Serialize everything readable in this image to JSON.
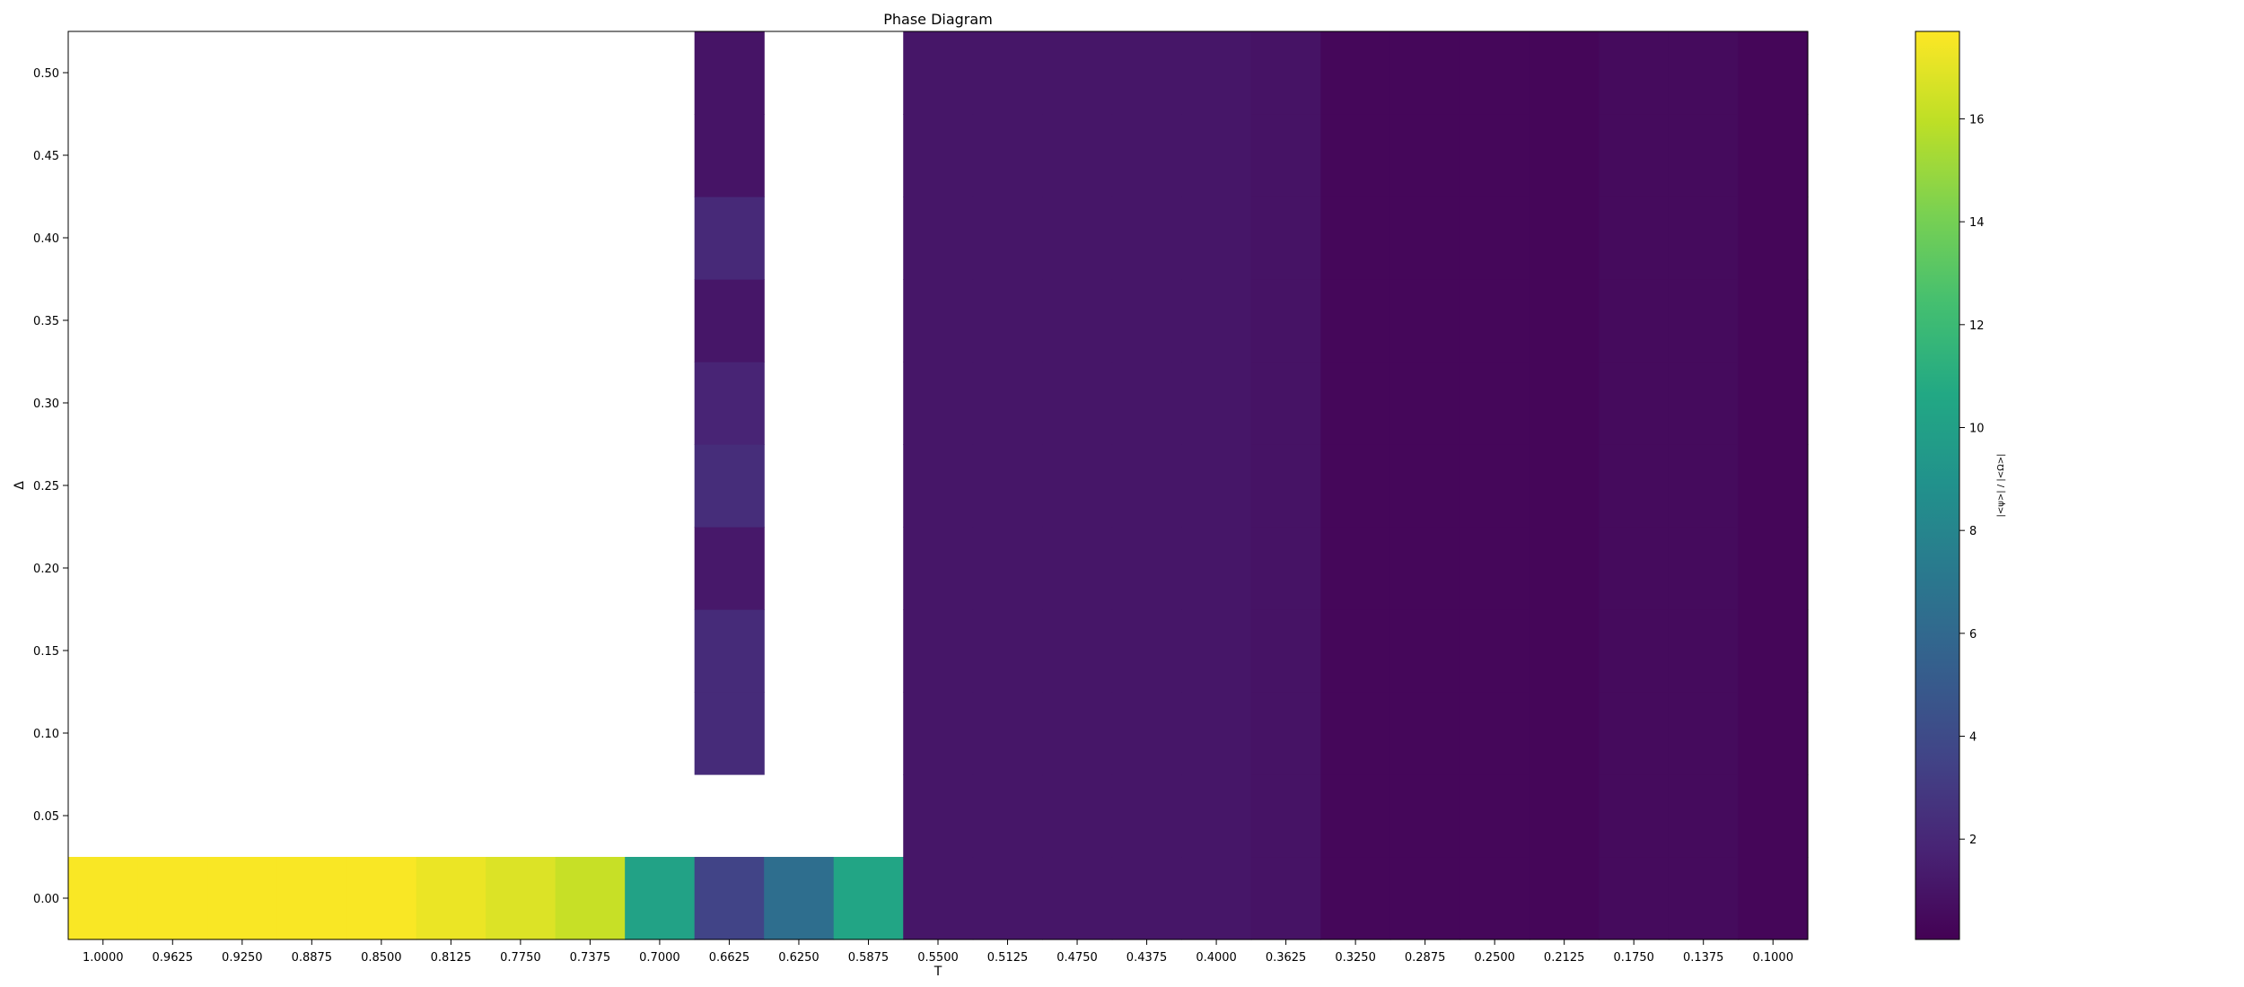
{
  "chart_data": {
    "type": "heatmap",
    "title": "Phase Diagram",
    "xlabel": "T",
    "ylabel": "Δ",
    "colorbar_label": "|<ψ>| / |<Ω>|",
    "colormap": "viridis",
    "vmin": 0.05,
    "vmax": 17.7,
    "x_tick_labels": [
      "1.0000",
      "0.9625",
      "0.9250",
      "0.8875",
      "0.8500",
      "0.8125",
      "0.7750",
      "0.7375",
      "0.7000",
      "0.6625",
      "0.6250",
      "0.5875",
      "0.5500",
      "0.5125",
      "0.4750",
      "0.4375",
      "0.4000",
      "0.3625",
      "0.3250",
      "0.2875",
      "0.2500",
      "0.2125",
      "0.1750",
      "0.1375",
      "0.1000"
    ],
    "y_values": [
      0.0,
      0.05,
      0.1,
      0.15,
      0.2,
      0.25,
      0.3,
      0.35,
      0.4,
      0.45,
      0.5
    ],
    "y_cell_bounds": [
      [
        -0.025,
        0.025
      ],
      [
        0.025,
        0.075
      ],
      [
        0.075,
        0.125
      ],
      [
        0.125,
        0.175
      ],
      [
        0.175,
        0.225
      ],
      [
        0.225,
        0.275
      ],
      [
        0.275,
        0.325
      ],
      [
        0.325,
        0.375
      ],
      [
        0.375,
        0.425
      ],
      [
        0.425,
        0.475
      ],
      [
        0.475,
        0.525
      ]
    ],
    "y_tick_labels": [
      "0.00",
      "0.05",
      "0.10",
      "0.15",
      "0.20",
      "0.25",
      "0.30",
      "0.35",
      "0.40",
      "0.45",
      "0.50"
    ],
    "ylim": [
      -0.025,
      0.525
    ],
    "colorbar_ticks": [
      2,
      4,
      6,
      8,
      10,
      12,
      14,
      16
    ],
    "grid": false,
    "values": [
      [
        17.6,
        17.6,
        17.6,
        17.6,
        17.6,
        17.2,
        16.8,
        16.2,
        10.2,
        3.6,
        6.4,
        10.4,
        1.1,
        1.1,
        1.1,
        1.1,
        1.1,
        0.95,
        0.35,
        0.35,
        0.35,
        0.3,
        0.55,
        0.55,
        0.3
      ],
      [
        null,
        null,
        null,
        null,
        null,
        null,
        null,
        null,
        null,
        null,
        null,
        null,
        1.1,
        1.1,
        1.1,
        1.1,
        1.1,
        0.95,
        0.35,
        0.35,
        0.35,
        0.3,
        0.55,
        0.55,
        0.3
      ],
      [
        null,
        null,
        null,
        null,
        null,
        null,
        null,
        null,
        null,
        2.2,
        null,
        null,
        1.1,
        1.1,
        1.1,
        1.1,
        1.1,
        0.95,
        0.35,
        0.35,
        0.35,
        0.3,
        0.55,
        0.55,
        0.3
      ],
      [
        null,
        null,
        null,
        null,
        null,
        null,
        null,
        null,
        null,
        2.2,
        null,
        null,
        1.1,
        1.1,
        1.1,
        1.1,
        1.1,
        0.95,
        0.35,
        0.35,
        0.35,
        0.3,
        0.55,
        0.55,
        0.3
      ],
      [
        null,
        null,
        null,
        null,
        null,
        null,
        null,
        null,
        null,
        1.2,
        null,
        null,
        1.1,
        1.1,
        1.1,
        1.1,
        1.1,
        0.95,
        0.35,
        0.35,
        0.35,
        0.3,
        0.55,
        0.55,
        0.3
      ],
      [
        null,
        null,
        null,
        null,
        null,
        null,
        null,
        null,
        null,
        2.3,
        null,
        null,
        1.1,
        1.1,
        1.1,
        1.1,
        1.1,
        0.95,
        0.35,
        0.35,
        0.35,
        0.3,
        0.55,
        0.55,
        0.3
      ],
      [
        null,
        null,
        null,
        null,
        null,
        null,
        null,
        null,
        null,
        1.8,
        null,
        null,
        1.1,
        1.1,
        1.1,
        1.1,
        1.1,
        0.95,
        0.35,
        0.35,
        0.35,
        0.3,
        0.55,
        0.55,
        0.3
      ],
      [
        null,
        null,
        null,
        null,
        null,
        null,
        null,
        null,
        null,
        1.1,
        null,
        null,
        1.1,
        1.1,
        1.1,
        1.1,
        1.1,
        0.95,
        0.35,
        0.35,
        0.35,
        0.3,
        0.55,
        0.55,
        0.3
      ],
      [
        null,
        null,
        null,
        null,
        null,
        null,
        null,
        null,
        null,
        2.1,
        null,
        null,
        1.1,
        1.1,
        1.1,
        1.1,
        1.1,
        0.95,
        0.35,
        0.35,
        0.35,
        0.3,
        0.55,
        0.55,
        0.3
      ],
      [
        null,
        null,
        null,
        null,
        null,
        null,
        null,
        null,
        null,
        1.0,
        null,
        null,
        1.1,
        1.1,
        1.1,
        1.1,
        1.1,
        0.95,
        0.35,
        0.35,
        0.35,
        0.3,
        0.55,
        0.55,
        0.3
      ],
      [
        null,
        null,
        null,
        null,
        null,
        null,
        null,
        null,
        null,
        1.0,
        null,
        null,
        1.1,
        1.1,
        1.1,
        1.1,
        1.1,
        0.95,
        0.35,
        0.35,
        0.35,
        0.3,
        0.55,
        0.55,
        0.3
      ]
    ]
  }
}
